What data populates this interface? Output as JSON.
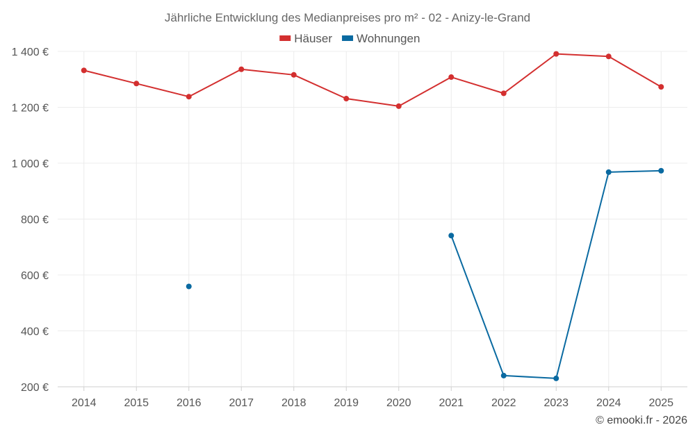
{
  "chart_data": {
    "type": "line",
    "title": "Jährliche Entwicklung des Medianpreises pro m² - 02 - Anizy-le-Grand",
    "categories": [
      "2014",
      "2015",
      "2016",
      "2017",
      "2018",
      "2019",
      "2020",
      "2021",
      "2022",
      "2023",
      "2024",
      "2025"
    ],
    "series": [
      {
        "name": "Häuser",
        "color": "#d32f2f",
        "values": [
          1332,
          1285,
          1238,
          1336,
          1316,
          1231,
          1204,
          1308,
          1250,
          1391,
          1382,
          1273
        ]
      },
      {
        "name": "Wohnungen",
        "color": "#0a6aa1",
        "values": [
          null,
          null,
          559,
          null,
          null,
          null,
          null,
          741,
          240,
          230,
          968,
          973
        ]
      }
    ],
    "yticks": [
      200,
      400,
      600,
      800,
      1000,
      1200,
      1400
    ],
    "ytick_labels": [
      "200 €",
      "400 €",
      "600 €",
      "800 €",
      "1 000 €",
      "1 200 €",
      "1 400 €"
    ],
    "ylim": [
      200,
      1400
    ],
    "xlabel": "",
    "ylabel": "",
    "grid": true,
    "legend_position": "top-center"
  },
  "credit": "© emooki.fr - 2026"
}
